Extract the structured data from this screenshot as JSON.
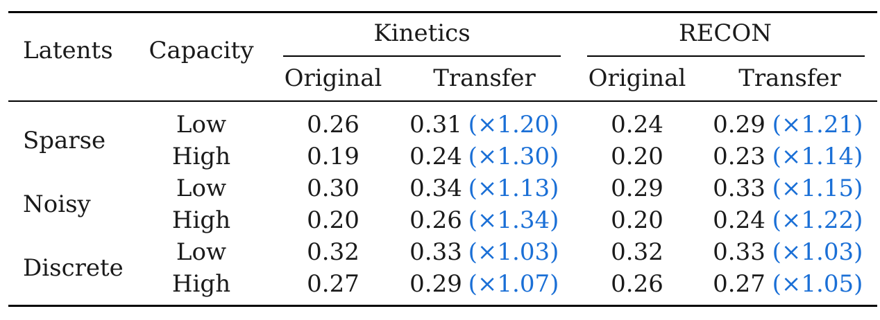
{
  "table": {
    "headers": {
      "latents": "Latents",
      "capacity": "Capacity",
      "group1": "Kinetics",
      "group2": "RECON",
      "original": "Original",
      "transfer": "Transfer"
    },
    "groups": [
      {
        "latents": "Sparse",
        "rows": [
          {
            "capacity": "Low",
            "k_orig": "0.26",
            "k_trans": "0.31",
            "k_ratio": "(×1.20)",
            "r_orig": "0.24",
            "r_trans": "0.29",
            "r_ratio": "(×1.21)"
          },
          {
            "capacity": "High",
            "k_orig": "0.19",
            "k_trans": "0.24",
            "k_ratio": "(×1.30)",
            "r_orig": "0.20",
            "r_trans": "0.23",
            "r_ratio": "(×1.14)"
          }
        ]
      },
      {
        "latents": "Noisy",
        "rows": [
          {
            "capacity": "Low",
            "k_orig": "0.30",
            "k_trans": "0.34",
            "k_ratio": "(×1.13)",
            "r_orig": "0.29",
            "r_trans": "0.33",
            "r_ratio": "(×1.15)"
          },
          {
            "capacity": "High",
            "k_orig": "0.20",
            "k_trans": "0.26",
            "k_ratio": "(×1.34)",
            "r_orig": "0.20",
            "r_trans": "0.24",
            "r_ratio": "(×1.22)"
          }
        ]
      },
      {
        "latents": "Discrete",
        "rows": [
          {
            "capacity": "Low",
            "k_orig": "0.32",
            "k_trans": "0.33",
            "k_ratio": "(×1.03)",
            "r_orig": "0.32",
            "r_trans": "0.33",
            "r_ratio": "(×1.03)"
          },
          {
            "capacity": "High",
            "k_orig": "0.27",
            "k_trans": "0.29",
            "k_ratio": "(×1.07)",
            "r_orig": "0.26",
            "r_trans": "0.27",
            "r_ratio": "(×1.05)"
          }
        ]
      }
    ]
  }
}
